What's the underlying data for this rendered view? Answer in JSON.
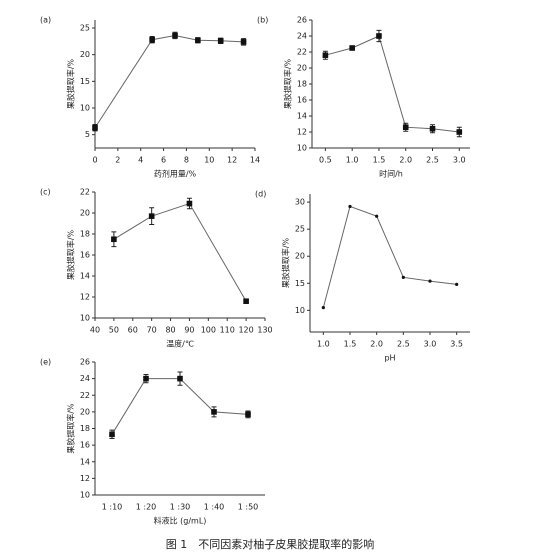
{
  "chart_data": [
    {
      "type": "line",
      "label": "(a)",
      "x_label": "药剂用量/%",
      "y_label": "果胶提取率/%",
      "x": [
        0,
        5,
        7,
        9,
        11,
        13
      ],
      "values": [
        6.3,
        22.8,
        23.6,
        22.7,
        22.6,
        22.4
      ],
      "errors": [
        0.6,
        0.6,
        0.6,
        0.5,
        0.5,
        0.6
      ],
      "color": "#666666",
      "marker": "square",
      "xlim": [
        0,
        14
      ],
      "xticks": [
        0,
        2,
        4,
        6,
        8,
        10,
        12,
        14
      ],
      "ylim": [
        2.5,
        26.5
      ],
      "yticks": [
        5,
        10,
        15,
        20,
        25
      ]
    },
    {
      "type": "line",
      "label": "(b)",
      "x_label": "时间/h",
      "y_label": "果胶提取率/%",
      "x": [
        0.5,
        1,
        1.5,
        2,
        2.5,
        3
      ],
      "values": [
        21.6,
        22.5,
        24.0,
        12.6,
        12.4,
        12.0
      ],
      "errors": [
        0.5,
        0.2,
        0.7,
        0.5,
        0.5,
        0.6
      ],
      "color": "#666666",
      "marker": "square",
      "xlim": [
        0.25,
        3.2
      ],
      "xticks": [
        0.5,
        {
          "value": 1,
          "label": "1.0"
        },
        1.5,
        {
          "value": 2,
          "label": "2.0"
        },
        2.5,
        {
          "value": 3,
          "label": "3.0"
        }
      ],
      "ylim": [
        10,
        26
      ],
      "yticks": [
        10,
        12,
        14,
        16,
        18,
        20,
        22,
        24,
        26
      ]
    },
    {
      "type": "line",
      "label": "(c)",
      "x_label": "温度/℃",
      "y_label": "果胶提取率/%",
      "x": [
        50,
        70,
        90,
        120
      ],
      "values": [
        17.5,
        19.7,
        20.9,
        11.6
      ],
      "errors": [
        0.7,
        0.8,
        0.5,
        0.1
      ],
      "color": "#666666",
      "marker": "square",
      "xlim": [
        40,
        130
      ],
      "xticks": [
        40,
        50,
        60,
        70,
        80,
        90,
        100,
        110,
        120,
        130
      ],
      "ylim": [
        10,
        22
      ],
      "yticks": [
        10,
        12,
        14,
        16,
        18,
        20,
        22
      ]
    },
    {
      "type": "line",
      "label": "(d)",
      "x_label": "pH",
      "y_label": "果胶提取率/%",
      "x": [
        1,
        1.5,
        2,
        2.5,
        3,
        3.5
      ],
      "values": [
        10.5,
        29.2,
        27.4,
        16.1,
        15.4,
        14.8
      ],
      "color": "#666666",
      "marker": "dot",
      "xlim": [
        0.75,
        3.75
      ],
      "xticks": [
        {
          "value": 1,
          "label": "1.0"
        },
        1.5,
        {
          "value": 2,
          "label": "2.0"
        },
        2.5,
        {
          "value": 3,
          "label": "3.0"
        },
        3.5
      ],
      "ylim": [
        6,
        31.5
      ],
      "yticks": [
        10,
        15,
        20,
        25,
        30
      ]
    },
    {
      "type": "line",
      "label": "(e)",
      "x_label": "料液比 (g/mL)",
      "y_label": "果胶提取率/%",
      "categories": [
        "1 :10",
        "1 :20",
        "1 :30",
        "1 :40",
        "1 :50"
      ],
      "values": [
        17.3,
        24.0,
        24.0,
        20.0,
        19.7
      ],
      "errors": [
        0.5,
        0.5,
        0.8,
        0.6,
        0.4
      ],
      "color": "#666666",
      "marker": "square",
      "ylim": [
        10,
        26
      ],
      "yticks": [
        10,
        12,
        14,
        16,
        18,
        20,
        22,
        24,
        26
      ]
    }
  ],
  "caption": "图 1　不同因素对柚子皮果胶提取率的影响"
}
